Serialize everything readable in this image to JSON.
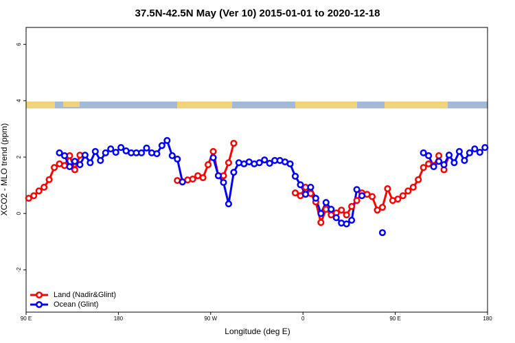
{
  "chart_data": {
    "type": "line",
    "title": "37.5N-42.5N May (Ver 10)   2015-01-01 to 2020-12-18",
    "x_label": "Longitude (deg E)",
    "y_label": "XCO2 - MLO trend (ppm)",
    "x": [
      92.5,
      97.5,
      102.5,
      107.5,
      112.5,
      117.5,
      122.5,
      127.5,
      132.5,
      137.5,
      142.5,
      147.5,
      152.5,
      157.5,
      162.5,
      167.5,
      172.5,
      177.5,
      182.5,
      187.5,
      192.5,
      197.5,
      202.5,
      207.5,
      212.5,
      217.5,
      222.5,
      227.5,
      232.5,
      237.5,
      242.5,
      247.5,
      252.5,
      257.5,
      262.5,
      267.5,
      272.5,
      277.5,
      282.5,
      287.5,
      292.5,
      297.5,
      302.5,
      307.5,
      312.5,
      317.5,
      322.5,
      327.5,
      332.5,
      337.5,
      342.5,
      347.5,
      352.5,
      357.5,
      362.5,
      367.5,
      372.5,
      377.5,
      382.5,
      387.5,
      392.5,
      397.5,
      402.5,
      407.5,
      412.5,
      417.5,
      422.5,
      427.5,
      432.5,
      437.5,
      442.5,
      447.5,
      452.5,
      457.5,
      462.5,
      467.5,
      472.5,
      477.5,
      482.5,
      487.5,
      492.5,
      497.5,
      502.5,
      507.5,
      512.5,
      517.5,
      522.5,
      527.5,
      532.5,
      537.5
    ],
    "series": [
      {
        "name": "Land (Nadir&Glint)",
        "color": "#ff0000",
        "values": [
          0.54,
          0.63,
          0.8,
          0.93,
          1.2,
          1.63,
          1.76,
          1.7,
          2.05,
          1.55,
          2.07,
          null,
          null,
          null,
          null,
          null,
          null,
          null,
          null,
          null,
          null,
          null,
          null,
          null,
          null,
          null,
          null,
          null,
          null,
          1.17,
          1.12,
          1.19,
          1.22,
          1.34,
          1.27,
          1.73,
          2.2,
          1.34,
          1.34,
          1.8,
          2.49,
          null,
          null,
          null,
          null,
          null,
          null,
          null,
          null,
          null,
          null,
          null,
          0.73,
          0.63,
          0.93,
          0.71,
          0.41,
          -0.32,
          0.15,
          -0.05,
          0.02,
          0.12,
          -0.05,
          0.25,
          0.46,
          0.73,
          0.68,
          0.6,
          0.12,
          0.22,
          0.88,
          0.46,
          0.51,
          0.63,
          0.8,
          0.93,
          1.2,
          1.63,
          1.76,
          1.7,
          2.05,
          1.55,
          2.07,
          null,
          null,
          null,
          null,
          null,
          null,
          null
        ]
      },
      {
        "name": "Ocean (Glint)",
        "color": "#0000ff",
        "values": [
          null,
          null,
          null,
          null,
          null,
          null,
          2.15,
          2.05,
          1.66,
          1.85,
          1.73,
          2.07,
          1.8,
          2.2,
          1.88,
          2.15,
          2.29,
          2.17,
          2.34,
          2.22,
          2.15,
          2.15,
          2.15,
          2.32,
          2.15,
          2.12,
          2.41,
          2.59,
          2.05,
          1.93,
          1.12,
          null,
          null,
          null,
          null,
          null,
          1.98,
          1.34,
          1.1,
          0.34,
          1.46,
          1.8,
          1.76,
          1.83,
          1.76,
          1.8,
          1.9,
          1.78,
          1.88,
          1.88,
          1.83,
          1.76,
          1.32,
          1.02,
          0.68,
          0.93,
          0.54,
          0,
          0.39,
          0.15,
          -0.15,
          -0.34,
          -0.37,
          -0.24,
          0.85,
          0.63,
          null,
          null,
          null,
          -0.68,
          null,
          null,
          null,
          null,
          null,
          null,
          null,
          2.15,
          2.05,
          1.66,
          1.85,
          1.73,
          2.07,
          1.8,
          2.2,
          1.88,
          2.15,
          2.29,
          2.17,
          2.34
        ]
      }
    ],
    "xlim": [
      90,
      540
    ],
    "xticks": [
      {
        "value": 90,
        "label": "90 E"
      },
      180,
      {
        "value": 270,
        "label": "90 W"
      },
      {
        "value": 360,
        "label": "0"
      },
      {
        "value": 450,
        "label": "90 E"
      },
      {
        "value": 540,
        "label": "180"
      }
    ],
    "ylim": [
      -3.5,
      6.6
    ],
    "yticks": [
      -2,
      0,
      2,
      4,
      6
    ],
    "legend": "bottom-left"
  }
}
